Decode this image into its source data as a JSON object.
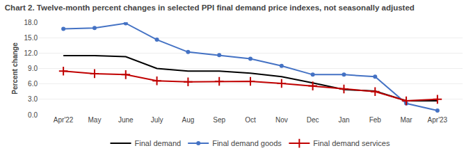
{
  "chart_data": {
    "type": "line",
    "title": "Chart 2. Twelve-month percent changes in selected PPI final demand price indexes, not seasonally adjusted",
    "ylabel": "Percent change",
    "categories": [
      "Apr'22",
      "May",
      "June",
      "July",
      "Aug",
      "Sep",
      "Oct",
      "Nov",
      "Dec",
      "Jan",
      "Feb",
      "Mar",
      "Apr'23"
    ],
    "series": [
      {
        "name": "Final demand",
        "color": "#000000",
        "values": [
          11.5,
          11.5,
          11.3,
          9.0,
          8.5,
          8.5,
          8.1,
          7.4,
          6.2,
          4.9,
          4.6,
          2.7,
          2.7
        ]
      },
      {
        "name": "Final demand goods",
        "color": "#4472C4",
        "marker": "circle",
        "values": [
          16.7,
          16.9,
          17.8,
          14.6,
          12.2,
          11.6,
          10.9,
          9.5,
          7.8,
          7.8,
          7.4,
          2.2,
          0.8
        ]
      },
      {
        "name": "Final demand services",
        "color": "#C00000",
        "marker": "plus",
        "values": [
          8.5,
          8.0,
          7.8,
          6.6,
          6.4,
          6.5,
          6.5,
          6.1,
          5.6,
          5.0,
          4.5,
          2.7,
          3.0
        ]
      }
    ],
    "ylim": [
      0.0,
      18.0
    ],
    "yticks": [
      {
        "value": 0.0,
        "label": "0.0"
      },
      {
        "value": 3.0,
        "label": "3.0"
      },
      {
        "value": 6.0,
        "label": "6.0"
      },
      {
        "value": 9.0,
        "label": "9.0"
      },
      {
        "value": 12.0,
        "label": "12.0"
      },
      {
        "value": 15.0,
        "label": "15.0"
      },
      {
        "value": 18.0,
        "label": "18.0"
      }
    ],
    "grid": true,
    "legend": "bottom"
  }
}
